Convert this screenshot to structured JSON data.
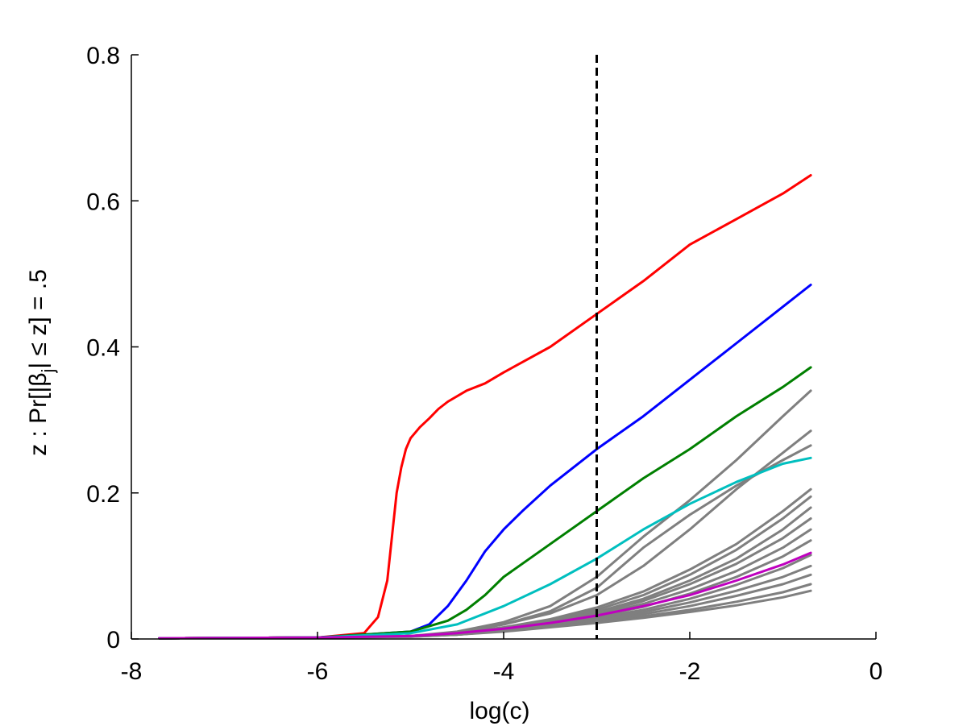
{
  "chart_data": {
    "type": "line",
    "title": "",
    "xlabel": "log(c)",
    "ylabel": "z : Pr[|β_j| ≤ z] = .5",
    "ylabel_parts": {
      "a": "z : Pr[|β",
      "sub": "j",
      "b": "| ≤ z] = .5"
    },
    "xlim": [
      -8,
      0
    ],
    "ylim": [
      0,
      0.8
    ],
    "xticks": [
      -8,
      -6,
      -4,
      -2,
      0
    ],
    "xtick_labels": [
      "-8",
      "-6",
      "-4",
      "-2",
      "0"
    ],
    "yticks": [
      0,
      0.2,
      0.4,
      0.6,
      0.8
    ],
    "ytick_labels": [
      "0",
      "0.2",
      "0.4",
      "0.6",
      "0.8"
    ],
    "grid": false,
    "vline": {
      "x": -3.0,
      "style": "dashed",
      "color": "#000000"
    },
    "series": [
      {
        "color": "#7f7f7f",
        "x": [
          -7.7,
          -6.0,
          -5.0,
          -4.5,
          -4.0,
          -3.5,
          -3.0,
          -2.5,
          -2.0,
          -1.5,
          -1.0,
          -0.7
        ],
        "y": [
          0.001,
          0.002,
          0.004,
          0.01,
          0.023,
          0.045,
          0.085,
          0.14,
          0.19,
          0.245,
          0.305,
          0.34
        ]
      },
      {
        "color": "#7f7f7f",
        "x": [
          -7.7,
          -6.0,
          -5.0,
          -4.5,
          -4.0,
          -3.5,
          -3.0,
          -2.5,
          -2.0,
          -1.5,
          -1.0,
          -0.7
        ],
        "y": [
          0.001,
          0.002,
          0.004,
          0.009,
          0.02,
          0.035,
          0.06,
          0.1,
          0.15,
          0.205,
          0.255,
          0.285
        ]
      },
      {
        "color": "#7f7f7f",
        "x": [
          -7.7,
          -6.0,
          -5.0,
          -4.5,
          -4.0,
          -3.5,
          -3.0,
          -2.5,
          -2.0,
          -1.5,
          -1.0,
          -0.7
        ],
        "y": [
          0.001,
          0.002,
          0.004,
          0.009,
          0.02,
          0.038,
          0.07,
          0.125,
          0.17,
          0.21,
          0.245,
          0.265
        ]
      },
      {
        "color": "#7f7f7f",
        "x": [
          -7.7,
          -6.0,
          -5.0,
          -4.5,
          -4.0,
          -3.5,
          -3.0,
          -2.5,
          -2.0,
          -1.5,
          -1.0,
          -0.7
        ],
        "y": [
          0.001,
          0.002,
          0.004,
          0.008,
          0.016,
          0.027,
          0.043,
          0.065,
          0.095,
          0.13,
          0.175,
          0.205
        ]
      },
      {
        "color": "#7f7f7f",
        "x": [
          -7.7,
          -6.0,
          -5.0,
          -4.5,
          -4.0,
          -3.5,
          -3.0,
          -2.5,
          -2.0,
          -1.5,
          -1.0,
          -0.7
        ],
        "y": [
          0.001,
          0.002,
          0.004,
          0.008,
          0.015,
          0.025,
          0.04,
          0.06,
          0.088,
          0.122,
          0.165,
          0.195
        ]
      },
      {
        "color": "#7f7f7f",
        "x": [
          -7.7,
          -6.0,
          -5.0,
          -4.5,
          -4.0,
          -3.5,
          -3.0,
          -2.5,
          -2.0,
          -1.5,
          -1.0,
          -0.7
        ],
        "y": [
          0.001,
          0.002,
          0.004,
          0.008,
          0.015,
          0.024,
          0.037,
          0.055,
          0.08,
          0.11,
          0.15,
          0.18
        ]
      },
      {
        "color": "#7f7f7f",
        "x": [
          -7.7,
          -6.0,
          -5.0,
          -4.5,
          -4.0,
          -3.5,
          -3.0,
          -2.5,
          -2.0,
          -1.5,
          -1.0,
          -0.7
        ],
        "y": [
          0.001,
          0.002,
          0.004,
          0.007,
          0.014,
          0.023,
          0.035,
          0.052,
          0.075,
          0.103,
          0.138,
          0.165
        ]
      },
      {
        "color": "#7f7f7f",
        "x": [
          -7.7,
          -6.0,
          -5.0,
          -4.5,
          -4.0,
          -3.5,
          -3.0,
          -2.5,
          -2.0,
          -1.5,
          -1.0,
          -0.7
        ],
        "y": [
          0.001,
          0.002,
          0.004,
          0.007,
          0.013,
          0.022,
          0.033,
          0.048,
          0.068,
          0.093,
          0.125,
          0.15
        ]
      },
      {
        "color": "#7f7f7f",
        "x": [
          -7.7,
          -6.0,
          -5.0,
          -4.5,
          -4.0,
          -3.5,
          -3.0,
          -2.5,
          -2.0,
          -1.5,
          -1.0,
          -0.7
        ],
        "y": [
          0.001,
          0.002,
          0.004,
          0.007,
          0.013,
          0.021,
          0.031,
          0.044,
          0.062,
          0.085,
          0.113,
          0.135
        ]
      },
      {
        "color": "#7f7f7f",
        "x": [
          -7.7,
          -6.0,
          -5.0,
          -4.5,
          -4.0,
          -3.5,
          -3.0,
          -2.5,
          -2.0,
          -1.5,
          -1.0,
          -0.7
        ],
        "y": [
          0.001,
          0.002,
          0.004,
          0.007,
          0.012,
          0.02,
          0.029,
          0.04,
          0.055,
          0.074,
          0.097,
          0.115
        ]
      },
      {
        "color": "#7f7f7f",
        "x": [
          -7.7,
          -6.0,
          -5.0,
          -4.5,
          -4.0,
          -3.5,
          -3.0,
          -2.5,
          -2.0,
          -1.5,
          -1.0,
          -0.7
        ],
        "y": [
          0.001,
          0.002,
          0.004,
          0.006,
          0.012,
          0.019,
          0.027,
          0.037,
          0.05,
          0.066,
          0.085,
          0.1
        ]
      },
      {
        "color": "#7f7f7f",
        "x": [
          -7.7,
          -6.0,
          -5.0,
          -4.5,
          -4.0,
          -3.5,
          -3.0,
          -2.5,
          -2.0,
          -1.5,
          -1.0,
          -0.7
        ],
        "y": [
          0.001,
          0.002,
          0.004,
          0.006,
          0.011,
          0.018,
          0.025,
          0.034,
          0.045,
          0.059,
          0.075,
          0.088
        ]
      },
      {
        "color": "#7f7f7f",
        "x": [
          -7.7,
          -6.0,
          -5.0,
          -4.5,
          -4.0,
          -3.5,
          -3.0,
          -2.5,
          -2.0,
          -1.5,
          -1.0,
          -0.7
        ],
        "y": [
          0.001,
          0.002,
          0.003,
          0.006,
          0.011,
          0.017,
          0.023,
          0.031,
          0.04,
          0.051,
          0.064,
          0.075
        ]
      },
      {
        "color": "#7f7f7f",
        "x": [
          -7.7,
          -6.0,
          -5.0,
          -4.5,
          -4.0,
          -3.5,
          -3.0,
          -2.5,
          -2.0,
          -1.5,
          -1.0,
          -0.7
        ],
        "y": [
          0.001,
          0.002,
          0.003,
          0.006,
          0.01,
          0.016,
          0.022,
          0.029,
          0.037,
          0.046,
          0.057,
          0.066
        ]
      },
      {
        "color": "#ff0000",
        "x": [
          -7.7,
          -6.0,
          -5.5,
          -5.35,
          -5.25,
          -5.2,
          -5.15,
          -5.1,
          -5.05,
          -5.0,
          -4.9,
          -4.8,
          -4.7,
          -4.6,
          -4.4,
          -4.2,
          -4.0,
          -3.5,
          -3.0,
          -2.5,
          -2.0,
          -1.5,
          -1.0,
          -0.7
        ],
        "y": [
          0.001,
          0.002,
          0.008,
          0.03,
          0.08,
          0.14,
          0.2,
          0.235,
          0.26,
          0.275,
          0.29,
          0.302,
          0.315,
          0.325,
          0.34,
          0.35,
          0.365,
          0.4,
          0.445,
          0.49,
          0.54,
          0.575,
          0.61,
          0.635
        ]
      },
      {
        "color": "#0000ff",
        "x": [
          -7.7,
          -6.0,
          -5.0,
          -4.8,
          -4.6,
          -4.4,
          -4.2,
          -4.0,
          -3.8,
          -3.5,
          -3.0,
          -2.5,
          -2.0,
          -1.5,
          -1.0,
          -0.7
        ],
        "y": [
          0.001,
          0.002,
          0.01,
          0.02,
          0.045,
          0.08,
          0.12,
          0.15,
          0.175,
          0.21,
          0.26,
          0.305,
          0.355,
          0.405,
          0.455,
          0.485
        ]
      },
      {
        "color": "#007f00",
        "x": [
          -7.7,
          -6.0,
          -5.0,
          -4.6,
          -4.4,
          -4.2,
          -4.0,
          -3.5,
          -3.0,
          -2.5,
          -2.0,
          -1.5,
          -1.0,
          -0.7
        ],
        "y": [
          0.001,
          0.002,
          0.01,
          0.025,
          0.04,
          0.06,
          0.085,
          0.13,
          0.175,
          0.22,
          0.26,
          0.305,
          0.345,
          0.372
        ]
      },
      {
        "color": "#00bfbf",
        "x": [
          -7.7,
          -6.0,
          -5.0,
          -4.5,
          -4.0,
          -3.5,
          -3.0,
          -2.5,
          -2.0,
          -1.5,
          -1.0,
          -0.7
        ],
        "y": [
          0.001,
          0.002,
          0.008,
          0.02,
          0.045,
          0.075,
          0.11,
          0.15,
          0.185,
          0.215,
          0.24,
          0.248
        ]
      },
      {
        "color": "#bf00bf",
        "x": [
          -7.7,
          -6.0,
          -5.0,
          -4.5,
          -4.0,
          -3.5,
          -3.0,
          -2.5,
          -2.0,
          -1.5,
          -1.0,
          -0.7
        ],
        "y": [
          0.001,
          0.002,
          0.004,
          0.008,
          0.014,
          0.022,
          0.032,
          0.045,
          0.06,
          0.08,
          0.102,
          0.118
        ]
      }
    ]
  }
}
